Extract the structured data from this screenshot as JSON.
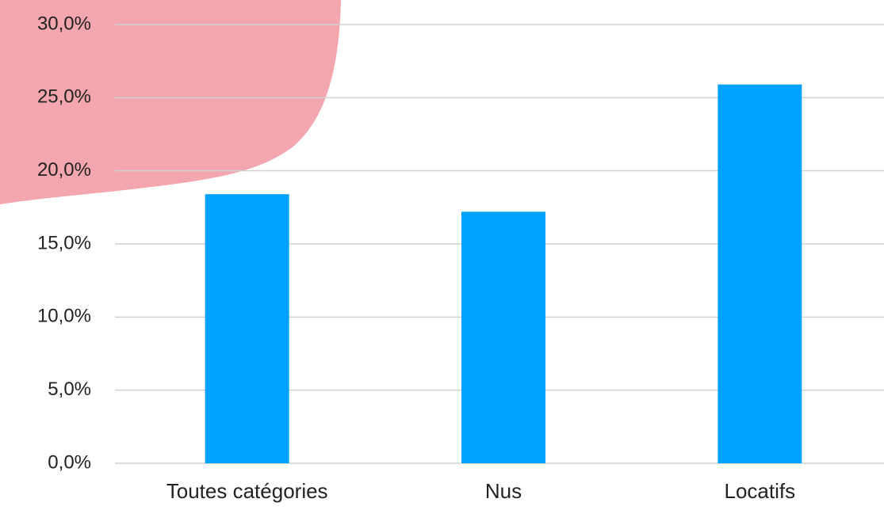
{
  "chart_data": {
    "type": "bar",
    "categories": [
      "Toutes catégories",
      "Nus",
      "Locatifs"
    ],
    "values": [
      18.4,
      17.2,
      25.9
    ],
    "color": "#00a2ff",
    "ylim": [
      0,
      30
    ],
    "yticks": [
      {
        "value": 0,
        "label": "0,0%"
      },
      {
        "value": 5,
        "label": "5,0%"
      },
      {
        "value": 10,
        "label": "10,0%"
      },
      {
        "value": 15,
        "label": "15,0%"
      },
      {
        "value": 20,
        "label": "20,0%"
      },
      {
        "value": 25,
        "label": "25,0%"
      },
      {
        "value": 30,
        "label": "30,0%"
      }
    ],
    "grid": true
  }
}
